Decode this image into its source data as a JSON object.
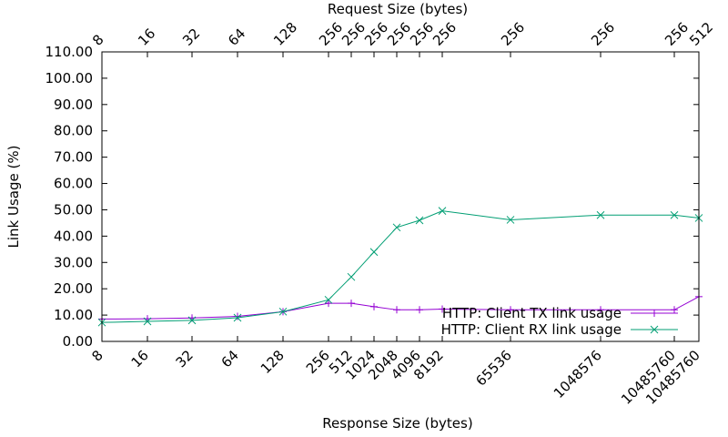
{
  "chart_data": {
    "type": "line",
    "title": "",
    "xlabel": "Response Size (bytes)",
    "x2label": "Request Size (bytes)",
    "ylabel": "Link Usage (%)",
    "ylim": [
      0,
      110
    ],
    "yticks": [
      "0.00",
      "10.00",
      "20.00",
      "30.00",
      "40.00",
      "50.00",
      "60.00",
      "70.00",
      "80.00",
      "90.00",
      "100.00",
      "110.00"
    ],
    "categories": [
      "8",
      "16",
      "32",
      "64",
      "128",
      "256",
      "512",
      "1024",
      "2048",
      "4096",
      "8192",
      "65536",
      "1048576",
      "10485760",
      "10485760"
    ],
    "top_categories": [
      "8",
      "16",
      "32",
      "64",
      "128",
      "256",
      "256",
      "256",
      "256",
      "256",
      "256",
      "256",
      "256",
      "256",
      "512"
    ],
    "legend_position": "bottom-right",
    "grid": false,
    "series": [
      {
        "name": "HTTP: Client TX link usage",
        "color": "#9400d3",
        "marker": "plus",
        "values": [
          8.5,
          8.6,
          8.9,
          9.5,
          11.3,
          14.5,
          14.5,
          13.2,
          12.0,
          12.0,
          12.3,
          12.0,
          12.0,
          12.0,
          17.0
        ]
      },
      {
        "name": "HTTP: Client RX link usage",
        "color": "#009e73",
        "marker": "cross",
        "values": [
          7.2,
          7.6,
          8.0,
          9.0,
          11.3,
          15.8,
          24.5,
          34.0,
          43.3,
          46.0,
          49.6,
          46.2,
          48.0,
          48.0,
          46.9
        ]
      }
    ]
  }
}
